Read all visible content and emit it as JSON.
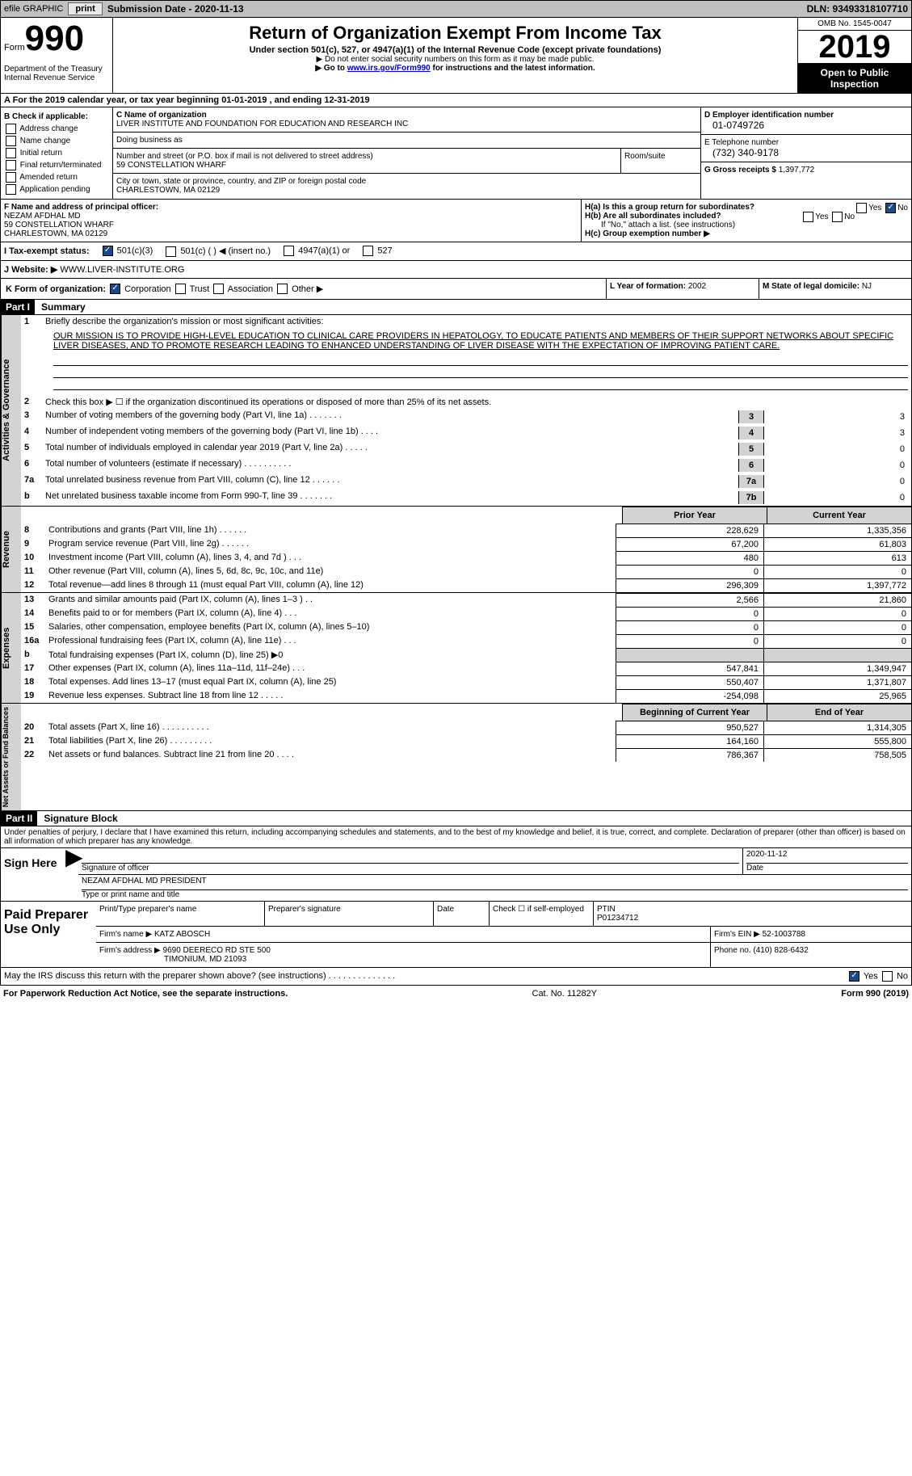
{
  "topbar": {
    "efile": "efile GRAPHIC",
    "print": "print",
    "submission": "Submission Date - 2020-11-13",
    "dln": "DLN: 93493318107710"
  },
  "header": {
    "form_prefix": "Form",
    "form_number": "990",
    "dept1": "Department of the Treasury",
    "dept2": "Internal Revenue Service",
    "title": "Return of Organization Exempt From Income Tax",
    "subtitle": "Under section 501(c), 527, or 4947(a)(1) of the Internal Revenue Code (except private foundations)",
    "note1": "▶ Do not enter social security numbers on this form as it may be made public.",
    "note2_pre": "▶ Go to ",
    "note2_link": "www.irs.gov/Form990",
    "note2_post": " for instructions and the latest information.",
    "omb": "OMB No. 1545-0047",
    "year": "2019",
    "inspection": "Open to Public Inspection"
  },
  "period": "A For the 2019 calendar year, or tax year beginning 01-01-2019    , and ending 12-31-2019",
  "b": {
    "label": "B Check if applicable:",
    "items": [
      "Address change",
      "Name change",
      "Initial return",
      "Final return/terminated",
      "Amended return",
      "Application pending"
    ]
  },
  "c": {
    "label_name": "C Name of organization",
    "name": "LIVER INSTITUTE AND FOUNDATION FOR EDUCATION AND RESEARCH INC",
    "dba_label": "Doing business as",
    "addr_label": "Number and street (or P.O. box if mail is not delivered to street address)",
    "room_label": "Room/suite",
    "addr": "59 CONSTELLATION WHARF",
    "city_label": "City or town, state or province, country, and ZIP or foreign postal code",
    "city": "CHARLESTOWN, MA  02129"
  },
  "d": {
    "label": "D Employer identification number",
    "ein": "01-0749726",
    "phone_label": "E Telephone number",
    "phone": "(732) 340-9178",
    "gross_label": "G Gross receipts $",
    "gross": "1,397,772"
  },
  "f": {
    "label": "F  Name and address of principal officer:",
    "name": "NEZAM AFDHAL MD",
    "addr1": "59 CONSTELLATION WHARF",
    "addr2": "CHARLESTOWN, MA  02129"
  },
  "h": {
    "a_label": "H(a)  Is this a group return for subordinates?",
    "b_label": "H(b)  Are all subordinates included?",
    "attach": "If \"No,\" attach a list. (see instructions)",
    "c_label": "H(c)  Group exemption number ▶",
    "yes": "Yes",
    "no": "No"
  },
  "i": {
    "label": "I  Tax-exempt status:",
    "opts": [
      "501(c)(3)",
      "501(c) (  ) ◀ (insert no.)",
      "4947(a)(1) or",
      "527"
    ]
  },
  "j": {
    "label": "J  Website: ▶",
    "val": "WWW.LIVER-INSTITUTE.ORG"
  },
  "k": {
    "label": "K Form of organization:",
    "opts": [
      "Corporation",
      "Trust",
      "Association",
      "Other ▶"
    ],
    "l_label": "L Year of formation:",
    "l_val": "2002",
    "m_label": "M State of legal domicile:",
    "m_val": "NJ"
  },
  "part1": {
    "header": "Part I",
    "title": "Summary",
    "line1": "Briefly describe the organization's mission or most significant activities:",
    "mission": "OUR MISSION IS TO PROVIDE HIGH-LEVEL EDUCATION TO CLINICAL CARE PROVIDERS IN HEPATOLOGY, TO EDUCATE PATIENTS AND MEMBERS OF THEIR SUPPORT NETWORKS ABOUT SPECIFIC LIVER DISEASES, AND TO PROMOTE RESEARCH LEADING TO ENHANCED UNDERSTANDING OF LIVER DISEASE WITH THE EXPECTATION OF IMPROVING PATIENT CARE.",
    "line2": "Check this box ▶ ☐  if the organization discontinued its operations or disposed of more than 25% of its net assets.",
    "sidelabel": "Activities & Governance",
    "rows": [
      {
        "n": "3",
        "t": "Number of voting members of the governing body (Part VI, line 1a)   .    .    .    .    .    .    .",
        "box": "3",
        "v": "3"
      },
      {
        "n": "4",
        "t": "Number of independent voting members of the governing body (Part VI, line 1b)   .    .    .    .",
        "box": "4",
        "v": "3"
      },
      {
        "n": "5",
        "t": "Total number of individuals employed in calendar year 2019 (Part V, line 2a)   .    .    .    .    .",
        "box": "5",
        "v": "0"
      },
      {
        "n": "6",
        "t": "Total number of volunteers (estimate if necessary)   .    .    .    .    .    .    .    .    .    .",
        "box": "6",
        "v": "0"
      },
      {
        "n": "7a",
        "t": "Total unrelated business revenue from Part VIII, column (C), line 12   .    .    .    .    .    .",
        "box": "7a",
        "v": "0"
      },
      {
        "n": "b",
        "t": "Net unrelated business taxable income from Form 990-T, line 39   .    .    .    .    .    .    .",
        "box": "7b",
        "v": "0"
      }
    ],
    "col_headers": {
      "prior": "Prior Year",
      "current": "Current Year"
    },
    "revenue_label": "Revenue",
    "revenue": [
      {
        "n": "8",
        "t": "Contributions and grants (Part VIII, line 1h)   .    .    .    .    .    .",
        "p": "228,629",
        "c": "1,335,356"
      },
      {
        "n": "9",
        "t": "Program service revenue (Part VIII, line 2g)   .    .    .    .    .    .",
        "p": "67,200",
        "c": "61,803"
      },
      {
        "n": "10",
        "t": "Investment income (Part VIII, column (A), lines 3, 4, and 7d )   .    .    .",
        "p": "480",
        "c": "613"
      },
      {
        "n": "11",
        "t": "Other revenue (Part VIII, column (A), lines 5, 6d, 8c, 9c, 10c, and 11e)",
        "p": "0",
        "c": "0"
      },
      {
        "n": "12",
        "t": "Total revenue—add lines 8 through 11 (must equal Part VIII, column (A), line 12)",
        "p": "296,309",
        "c": "1,397,772"
      }
    ],
    "expenses_label": "Expenses",
    "expenses": [
      {
        "n": "13",
        "t": "Grants and similar amounts paid (Part IX, column (A), lines 1–3 )  .    .",
        "p": "2,566",
        "c": "21,860"
      },
      {
        "n": "14",
        "t": "Benefits paid to or for members (Part IX, column (A), line 4)  .    .    .",
        "p": "0",
        "c": "0"
      },
      {
        "n": "15",
        "t": "Salaries, other compensation, employee benefits (Part IX, column (A), lines 5–10)",
        "p": "0",
        "c": "0"
      },
      {
        "n": "16a",
        "t": "Professional fundraising fees (Part IX, column (A), line 11e)  .    .    .",
        "p": "0",
        "c": "0"
      },
      {
        "n": "b",
        "t": "Total fundraising expenses (Part IX, column (D), line 25) ▶0",
        "p": "",
        "c": "",
        "shaded": true
      },
      {
        "n": "17",
        "t": "Other expenses (Part IX, column (A), lines 11a–11d, 11f–24e)  .    .    .",
        "p": "547,841",
        "c": "1,349,947"
      },
      {
        "n": "18",
        "t": "Total expenses. Add lines 13–17 (must equal Part IX, column (A), line 25)",
        "p": "550,407",
        "c": "1,371,807"
      },
      {
        "n": "19",
        "t": "Revenue less expenses. Subtract line 18 from line 12  .    .    .    .    .",
        "p": "-254,098",
        "c": "25,965"
      }
    ],
    "netassets_label": "Net Assets or Fund Balances",
    "net_headers": {
      "beg": "Beginning of Current Year",
      "end": "End of Year"
    },
    "netassets": [
      {
        "n": "20",
        "t": "Total assets (Part X, line 16)  .    .    .    .    .    .    .    .    .    .",
        "p": "950,527",
        "c": "1,314,305"
      },
      {
        "n": "21",
        "t": "Total liabilities (Part X, line 26)  .    .    .    .    .    .    .    .    .",
        "p": "164,160",
        "c": "555,800"
      },
      {
        "n": "22",
        "t": "Net assets or fund balances. Subtract line 21 from line 20  .    .    .    .",
        "p": "786,367",
        "c": "758,505"
      }
    ]
  },
  "part2": {
    "header": "Part II",
    "title": "Signature Block",
    "perjury": "Under penalties of perjury, I declare that I have examined this return, including accompanying schedules and statements, and to the best of my knowledge and belief, it is true, correct, and complete. Declaration of preparer (other than officer) is based on all information of which preparer has any knowledge.",
    "sign_here": "Sign Here",
    "sig_officer": "Signature of officer",
    "date": "Date",
    "sig_date": "2020-11-12",
    "officer_name": "NEZAM AFDHAL MD  PRESIDENT",
    "type_name": "Type or print name and title",
    "paid": "Paid Preparer Use Only",
    "prep_name_label": "Print/Type preparer's name",
    "prep_sig_label": "Preparer's signature",
    "date_label": "Date",
    "check_label": "Check ☐ if self-employed",
    "ptin_label": "PTIN",
    "ptin": "P01234712",
    "firm_name_label": "Firm's name   ▶",
    "firm_name": "KATZ ABOSCH",
    "firm_ein_label": "Firm's EIN ▶",
    "firm_ein": "52-1003788",
    "firm_addr_label": "Firm's address ▶",
    "firm_addr": "9690 DEERECO RD STE 500",
    "firm_city": "TIMONIUM, MD  21093",
    "phone_label": "Phone no.",
    "phone": "(410) 828-6432",
    "discuss": "May the IRS discuss this return with the preparer shown above? (see instructions)   .    .    .    .    .    .    .    .    .    .    .    .    .    .",
    "yes": "Yes",
    "no": "No"
  },
  "footer": {
    "left": "For Paperwork Reduction Act Notice, see the separate instructions.",
    "mid": "Cat. No. 11282Y",
    "right": "Form 990 (2019)"
  }
}
